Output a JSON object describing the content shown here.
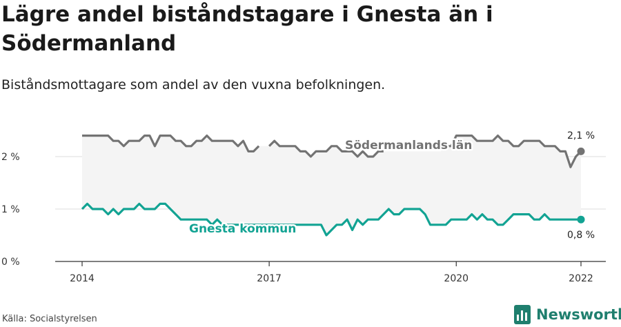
{
  "header": {
    "title": "Lägre andel biståndstagare i Gnesta än i Södermanland",
    "subtitle": "Biståndsmottagare som andel av den vuxna befolkningen."
  },
  "footer": {
    "source": "Källa: Socialstyrelsen",
    "brand": "Newsworthy"
  },
  "colors": {
    "region": "#737373",
    "municipality": "#12a393",
    "band": "#f4f4f4",
    "grid": "#dddddd",
    "brand": "#1f7f6e"
  },
  "icons": {
    "brand_logo": "bar-chart-logo-icon"
  },
  "chart_data": {
    "type": "line",
    "title": "Lägre andel biståndstagare i Gnesta än i Södermanland",
    "subtitle": "Biståndsmottagare som andel av den vuxna befolkningen.",
    "xlabel": "",
    "ylabel": "",
    "x_ticks": [
      "2014",
      "2017",
      "2020",
      "2022"
    ],
    "y_ticks": [
      "0 %",
      "1 %",
      "2 %"
    ],
    "ylim": [
      0,
      2.4
    ],
    "x_range": [
      "2014-01",
      "2022-01"
    ],
    "grid": true,
    "legend": "inline labels",
    "shaded_area_between_series": true,
    "series": [
      {
        "name": "Södermanlands län",
        "color": "#737373",
        "end_label": "2,1 %",
        "points": [
          [
            "2014-01",
            2.4
          ],
          [
            "2014-02",
            2.4
          ],
          [
            "2014-03",
            2.4
          ],
          [
            "2014-04",
            2.4
          ],
          [
            "2014-05",
            2.4
          ],
          [
            "2014-06",
            2.4
          ],
          [
            "2014-07",
            2.3
          ],
          [
            "2014-08",
            2.3
          ],
          [
            "2014-09",
            2.2
          ],
          [
            "2014-10",
            2.3
          ],
          [
            "2014-11",
            2.3
          ],
          [
            "2014-12",
            2.3
          ],
          [
            "2015-01",
            2.4
          ],
          [
            "2015-02",
            2.4
          ],
          [
            "2015-03",
            2.2
          ],
          [
            "2015-04",
            2.4
          ],
          [
            "2015-05",
            2.4
          ],
          [
            "2015-06",
            2.4
          ],
          [
            "2015-07",
            2.3
          ],
          [
            "2015-08",
            2.3
          ],
          [
            "2015-09",
            2.2
          ],
          [
            "2015-10",
            2.2
          ],
          [
            "2015-11",
            2.3
          ],
          [
            "2015-12",
            2.3
          ],
          [
            "2016-01",
            2.4
          ],
          [
            "2016-02",
            2.3
          ],
          [
            "2016-03",
            2.3
          ],
          [
            "2016-04",
            2.3
          ],
          [
            "2016-05",
            2.3
          ],
          [
            "2016-06",
            2.3
          ],
          [
            "2016-07",
            2.2
          ],
          [
            "2016-08",
            2.3
          ],
          [
            "2016-09",
            2.1
          ],
          [
            "2016-10",
            2.1
          ],
          [
            "2016-11",
            2.2
          ],
          [
            "2017-01",
            2.2
          ],
          [
            "2017-02",
            2.3
          ],
          [
            "2017-03",
            2.2
          ],
          [
            "2017-04",
            2.2
          ],
          [
            "2017-05",
            2.2
          ],
          [
            "2017-06",
            2.2
          ],
          [
            "2017-07",
            2.1
          ],
          [
            "2017-08",
            2.1
          ],
          [
            "2017-09",
            2.0
          ],
          [
            "2017-10",
            2.1
          ],
          [
            "2017-11",
            2.1
          ],
          [
            "2017-12",
            2.1
          ],
          [
            "2018-01",
            2.2
          ],
          [
            "2018-02",
            2.2
          ],
          [
            "2018-03",
            2.1
          ],
          [
            "2018-04",
            2.1
          ],
          [
            "2018-05",
            2.1
          ],
          [
            "2018-06",
            2.0
          ],
          [
            "2018-07",
            2.1
          ],
          [
            "2018-08",
            2.0
          ],
          [
            "2018-09",
            2.0
          ],
          [
            "2018-10",
            2.1
          ],
          [
            "2018-11",
            2.1
          ],
          [
            "2019-11",
            2.2
          ],
          [
            "2019-12",
            2.2
          ],
          [
            "2020-01",
            2.4
          ],
          [
            "2020-02",
            2.4
          ],
          [
            "2020-03",
            2.4
          ],
          [
            "2020-04",
            2.4
          ],
          [
            "2020-05",
            2.3
          ],
          [
            "2020-06",
            2.3
          ],
          [
            "2020-07",
            2.3
          ],
          [
            "2020-08",
            2.3
          ],
          [
            "2020-09",
            2.4
          ],
          [
            "2020-10",
            2.3
          ],
          [
            "2020-11",
            2.3
          ],
          [
            "2020-12",
            2.2
          ],
          [
            "2021-01",
            2.2
          ],
          [
            "2021-02",
            2.3
          ],
          [
            "2021-03",
            2.3
          ],
          [
            "2021-04",
            2.3
          ],
          [
            "2021-05",
            2.3
          ],
          [
            "2021-06",
            2.2
          ],
          [
            "2021-07",
            2.2
          ],
          [
            "2021-08",
            2.2
          ],
          [
            "2021-09",
            2.1
          ],
          [
            "2021-10",
            2.1
          ],
          [
            "2021-11",
            1.8
          ],
          [
            "2021-12",
            2.0
          ],
          [
            "2022-01",
            2.1
          ]
        ]
      },
      {
        "name": "Gnesta kommun",
        "color": "#12a393",
        "end_label": "0,8 %",
        "points": [
          [
            "2014-01",
            1.0
          ],
          [
            "2014-02",
            1.1
          ],
          [
            "2014-03",
            1.0
          ],
          [
            "2014-04",
            1.0
          ],
          [
            "2014-05",
            1.0
          ],
          [
            "2014-06",
            0.9
          ],
          [
            "2014-07",
            1.0
          ],
          [
            "2014-08",
            0.9
          ],
          [
            "2014-09",
            1.0
          ],
          [
            "2014-10",
            1.0
          ],
          [
            "2014-11",
            1.0
          ],
          [
            "2014-12",
            1.1
          ],
          [
            "2015-01",
            1.0
          ],
          [
            "2015-02",
            1.0
          ],
          [
            "2015-03",
            1.0
          ],
          [
            "2015-04",
            1.1
          ],
          [
            "2015-05",
            1.1
          ],
          [
            "2015-06",
            1.0
          ],
          [
            "2015-07",
            0.9
          ],
          [
            "2015-08",
            0.8
          ],
          [
            "2015-09",
            0.8
          ],
          [
            "2015-10",
            0.8
          ],
          [
            "2015-11",
            0.8
          ],
          [
            "2015-12",
            0.8
          ],
          [
            "2016-01",
            0.8
          ],
          [
            "2016-02",
            0.7
          ],
          [
            "2016-03",
            0.8
          ],
          [
            "2016-04",
            0.7
          ],
          [
            "2016-05",
            0.7
          ],
          [
            "2016-06",
            0.7
          ],
          [
            "2016-07",
            0.7
          ],
          [
            "2016-08",
            0.7
          ],
          [
            "2016-09",
            0.7
          ],
          [
            "2016-10",
            0.7
          ],
          [
            "2016-11",
            0.7
          ],
          [
            "2016-12",
            0.7
          ],
          [
            "2017-01",
            0.7
          ],
          [
            "2017-02",
            0.7
          ],
          [
            "2017-03",
            0.7
          ],
          [
            "2017-04",
            0.7
          ],
          [
            "2017-05",
            0.7
          ],
          [
            "2017-06",
            0.7
          ],
          [
            "2017-07",
            0.7
          ],
          [
            "2017-08",
            0.7
          ],
          [
            "2017-09",
            0.7
          ],
          [
            "2017-10",
            0.7
          ],
          [
            "2017-11",
            0.7
          ],
          [
            "2017-12",
            0.5
          ],
          [
            "2018-01",
            0.6
          ],
          [
            "2018-02",
            0.7
          ],
          [
            "2018-03",
            0.7
          ],
          [
            "2018-04",
            0.8
          ],
          [
            "2018-05",
            0.6
          ],
          [
            "2018-06",
            0.8
          ],
          [
            "2018-07",
            0.7
          ],
          [
            "2018-08",
            0.8
          ],
          [
            "2018-09",
            0.8
          ],
          [
            "2018-10",
            0.8
          ],
          [
            "2018-11",
            0.9
          ],
          [
            "2018-12",
            1.0
          ],
          [
            "2019-01",
            0.9
          ],
          [
            "2019-02",
            0.9
          ],
          [
            "2019-03",
            1.0
          ],
          [
            "2019-04",
            1.0
          ],
          [
            "2019-05",
            1.0
          ],
          [
            "2019-06",
            1.0
          ],
          [
            "2019-07",
            0.9
          ],
          [
            "2019-08",
            0.7
          ],
          [
            "2019-09",
            0.7
          ],
          [
            "2019-10",
            0.7
          ],
          [
            "2019-11",
            0.7
          ],
          [
            "2019-12",
            0.8
          ],
          [
            "2020-01",
            0.8
          ],
          [
            "2020-02",
            0.8
          ],
          [
            "2020-03",
            0.8
          ],
          [
            "2020-04",
            0.9
          ],
          [
            "2020-05",
            0.8
          ],
          [
            "2020-06",
            0.9
          ],
          [
            "2020-07",
            0.8
          ],
          [
            "2020-08",
            0.8
          ],
          [
            "2020-09",
            0.7
          ],
          [
            "2020-10",
            0.7
          ],
          [
            "2020-11",
            0.8
          ],
          [
            "2020-12",
            0.9
          ],
          [
            "2021-01",
            0.9
          ],
          [
            "2021-02",
            0.9
          ],
          [
            "2021-03",
            0.9
          ],
          [
            "2021-04",
            0.8
          ],
          [
            "2021-05",
            0.8
          ],
          [
            "2021-06",
            0.9
          ],
          [
            "2021-07",
            0.8
          ],
          [
            "2021-08",
            0.8
          ],
          [
            "2021-09",
            0.8
          ],
          [
            "2021-10",
            0.8
          ],
          [
            "2021-11",
            0.8
          ],
          [
            "2021-12",
            0.8
          ],
          [
            "2022-01",
            0.8
          ]
        ]
      }
    ]
  }
}
